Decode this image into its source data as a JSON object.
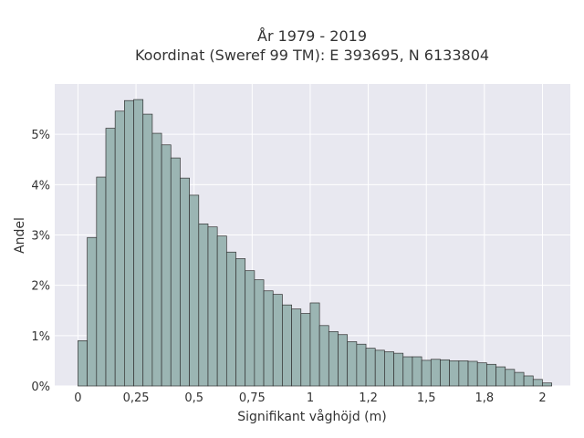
{
  "chart_data": {
    "type": "bar",
    "title_line1": "År 1979 - 2019",
    "title_line2": "Koordinat (Sweref 99 TM): E 393695, N 6133804",
    "xlabel": "Signifikant våghöjd (m)",
    "ylabel": "Andel",
    "xlim": [
      -0.1,
      2.12
    ],
    "ylim": [
      0,
      6.0
    ],
    "grid": true,
    "bin_width": 0.04,
    "x_ticks": [
      {
        "value": 0,
        "label": "0"
      },
      {
        "value": 0.25,
        "label": "0,25"
      },
      {
        "value": 0.5,
        "label": "0,5"
      },
      {
        "value": 0.75,
        "label": "0,75"
      },
      {
        "value": 1.0,
        "label": "1"
      },
      {
        "value": 1.25,
        "label": "1,2"
      },
      {
        "value": 1.5,
        "label": "1,5"
      },
      {
        "value": 1.75,
        "label": "1,8"
      },
      {
        "value": 2.0,
        "label": "2"
      }
    ],
    "y_ticks": [
      {
        "value": 0,
        "label": "0%"
      },
      {
        "value": 1,
        "label": "1%"
      },
      {
        "value": 2,
        "label": "2%"
      },
      {
        "value": 3,
        "label": "3%"
      },
      {
        "value": 4,
        "label": "4%"
      },
      {
        "value": 5,
        "label": "5%"
      }
    ],
    "bin_starts": [
      0,
      0.04,
      0.08,
      0.12,
      0.16,
      0.2,
      0.24,
      0.28,
      0.32,
      0.36,
      0.4,
      0.44,
      0.48,
      0.52,
      0.56,
      0.6,
      0.64,
      0.68,
      0.72,
      0.76,
      0.8,
      0.84,
      0.88,
      0.92,
      0.96,
      1.0,
      1.04,
      1.08,
      1.12,
      1.16,
      1.2,
      1.24,
      1.28,
      1.32,
      1.36,
      1.4,
      1.44,
      1.48,
      1.52,
      1.56,
      1.6,
      1.64,
      1.68,
      1.72,
      1.76,
      1.8,
      1.84,
      1.88,
      1.92,
      1.96,
      2.0
    ],
    "values": [
      0.9,
      2.95,
      4.15,
      5.12,
      5.46,
      5.67,
      5.69,
      5.4,
      5.02,
      4.79,
      4.53,
      4.13,
      3.79,
      3.22,
      3.16,
      2.98,
      2.66,
      2.53,
      2.29,
      2.11,
      1.89,
      1.82,
      1.61,
      1.53,
      1.44,
      1.65,
      1.2,
      1.08,
      1.02,
      0.88,
      0.83,
      0.75,
      0.71,
      0.68,
      0.65,
      0.58,
      0.58,
      0.51,
      0.53,
      0.52,
      0.5,
      0.5,
      0.49,
      0.46,
      0.43,
      0.38,
      0.33,
      0.27,
      0.2,
      0.13,
      0.06
    ]
  },
  "colors": {
    "plot_bg": "#e8e8f0",
    "grid": "#ffffff",
    "bar_fill": "#9bb5b3",
    "bar_stroke": "#333333",
    "text": "#333333"
  }
}
